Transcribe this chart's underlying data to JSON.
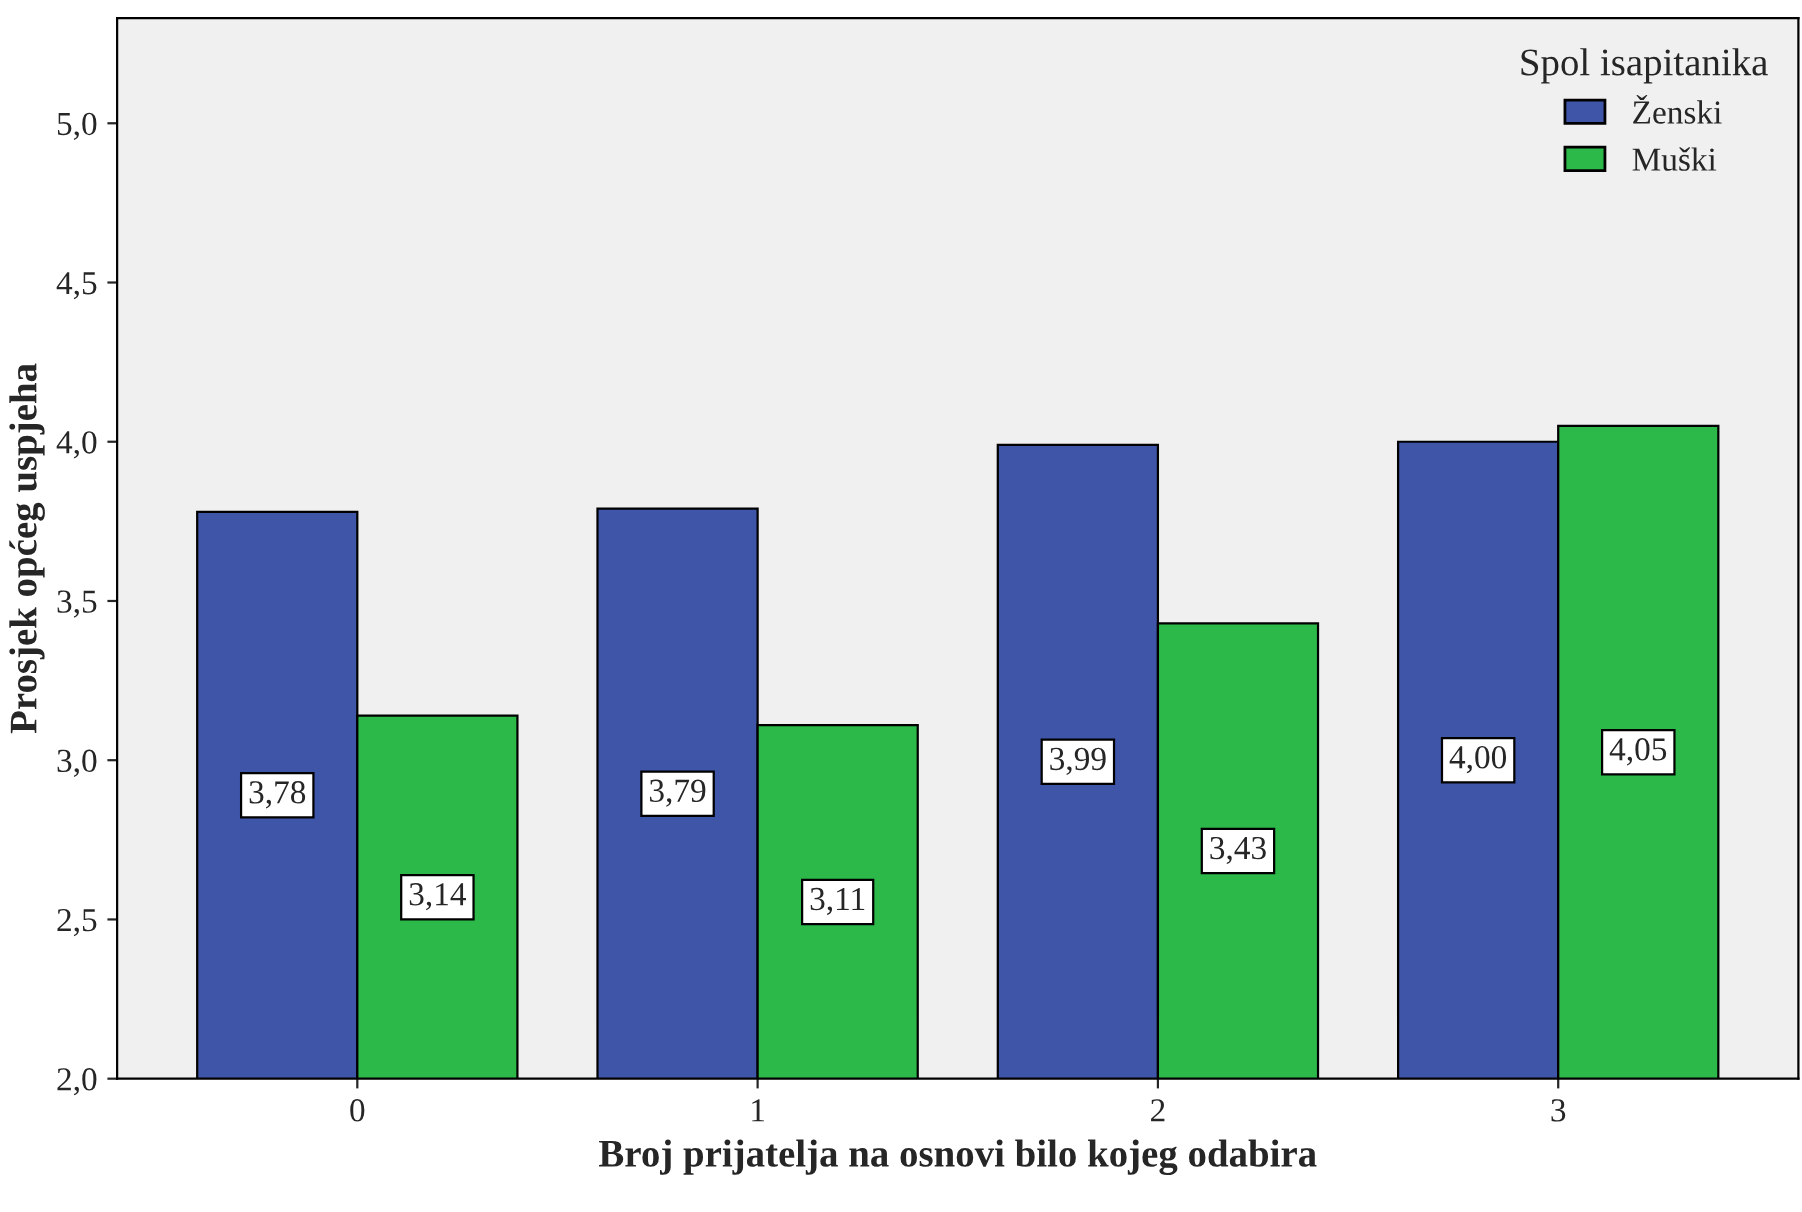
{
  "chart_data": {
    "type": "bar",
    "xlabel": "Broj prijatelja na osnovi bilo kojeg odabira",
    "ylabel": "Prosjek općeg uspjeha",
    "legend_title": "Spol isapitanika",
    "categories": [
      "0",
      "1",
      "2",
      "3"
    ],
    "series": [
      {
        "name": "Ženski",
        "color": "#3f56a8",
        "values": [
          3.78,
          3.79,
          3.99,
          4.0
        ],
        "value_labels": [
          "3,78",
          "3,79",
          "3,99",
          "4,00"
        ]
      },
      {
        "name": "Muški",
        "color": "#2db84a",
        "values": [
          3.14,
          3.11,
          3.43,
          4.05
        ],
        "value_labels": [
          "3,14",
          "3,11",
          "3,43",
          "4,05"
        ]
      }
    ],
    "ylim": [
      2.0,
      5.33
    ],
    "yticks": [
      {
        "value": 2.0,
        "label": "2,0"
      },
      {
        "value": 2.5,
        "label": "2,5"
      },
      {
        "value": 3.0,
        "label": "3,0"
      },
      {
        "value": 3.5,
        "label": "3,5"
      },
      {
        "value": 4.0,
        "label": "4,0"
      },
      {
        "value": 4.5,
        "label": "4,5"
      },
      {
        "value": 5.0,
        "label": "5,0"
      }
    ],
    "legend": "top right",
    "grid": false
  }
}
